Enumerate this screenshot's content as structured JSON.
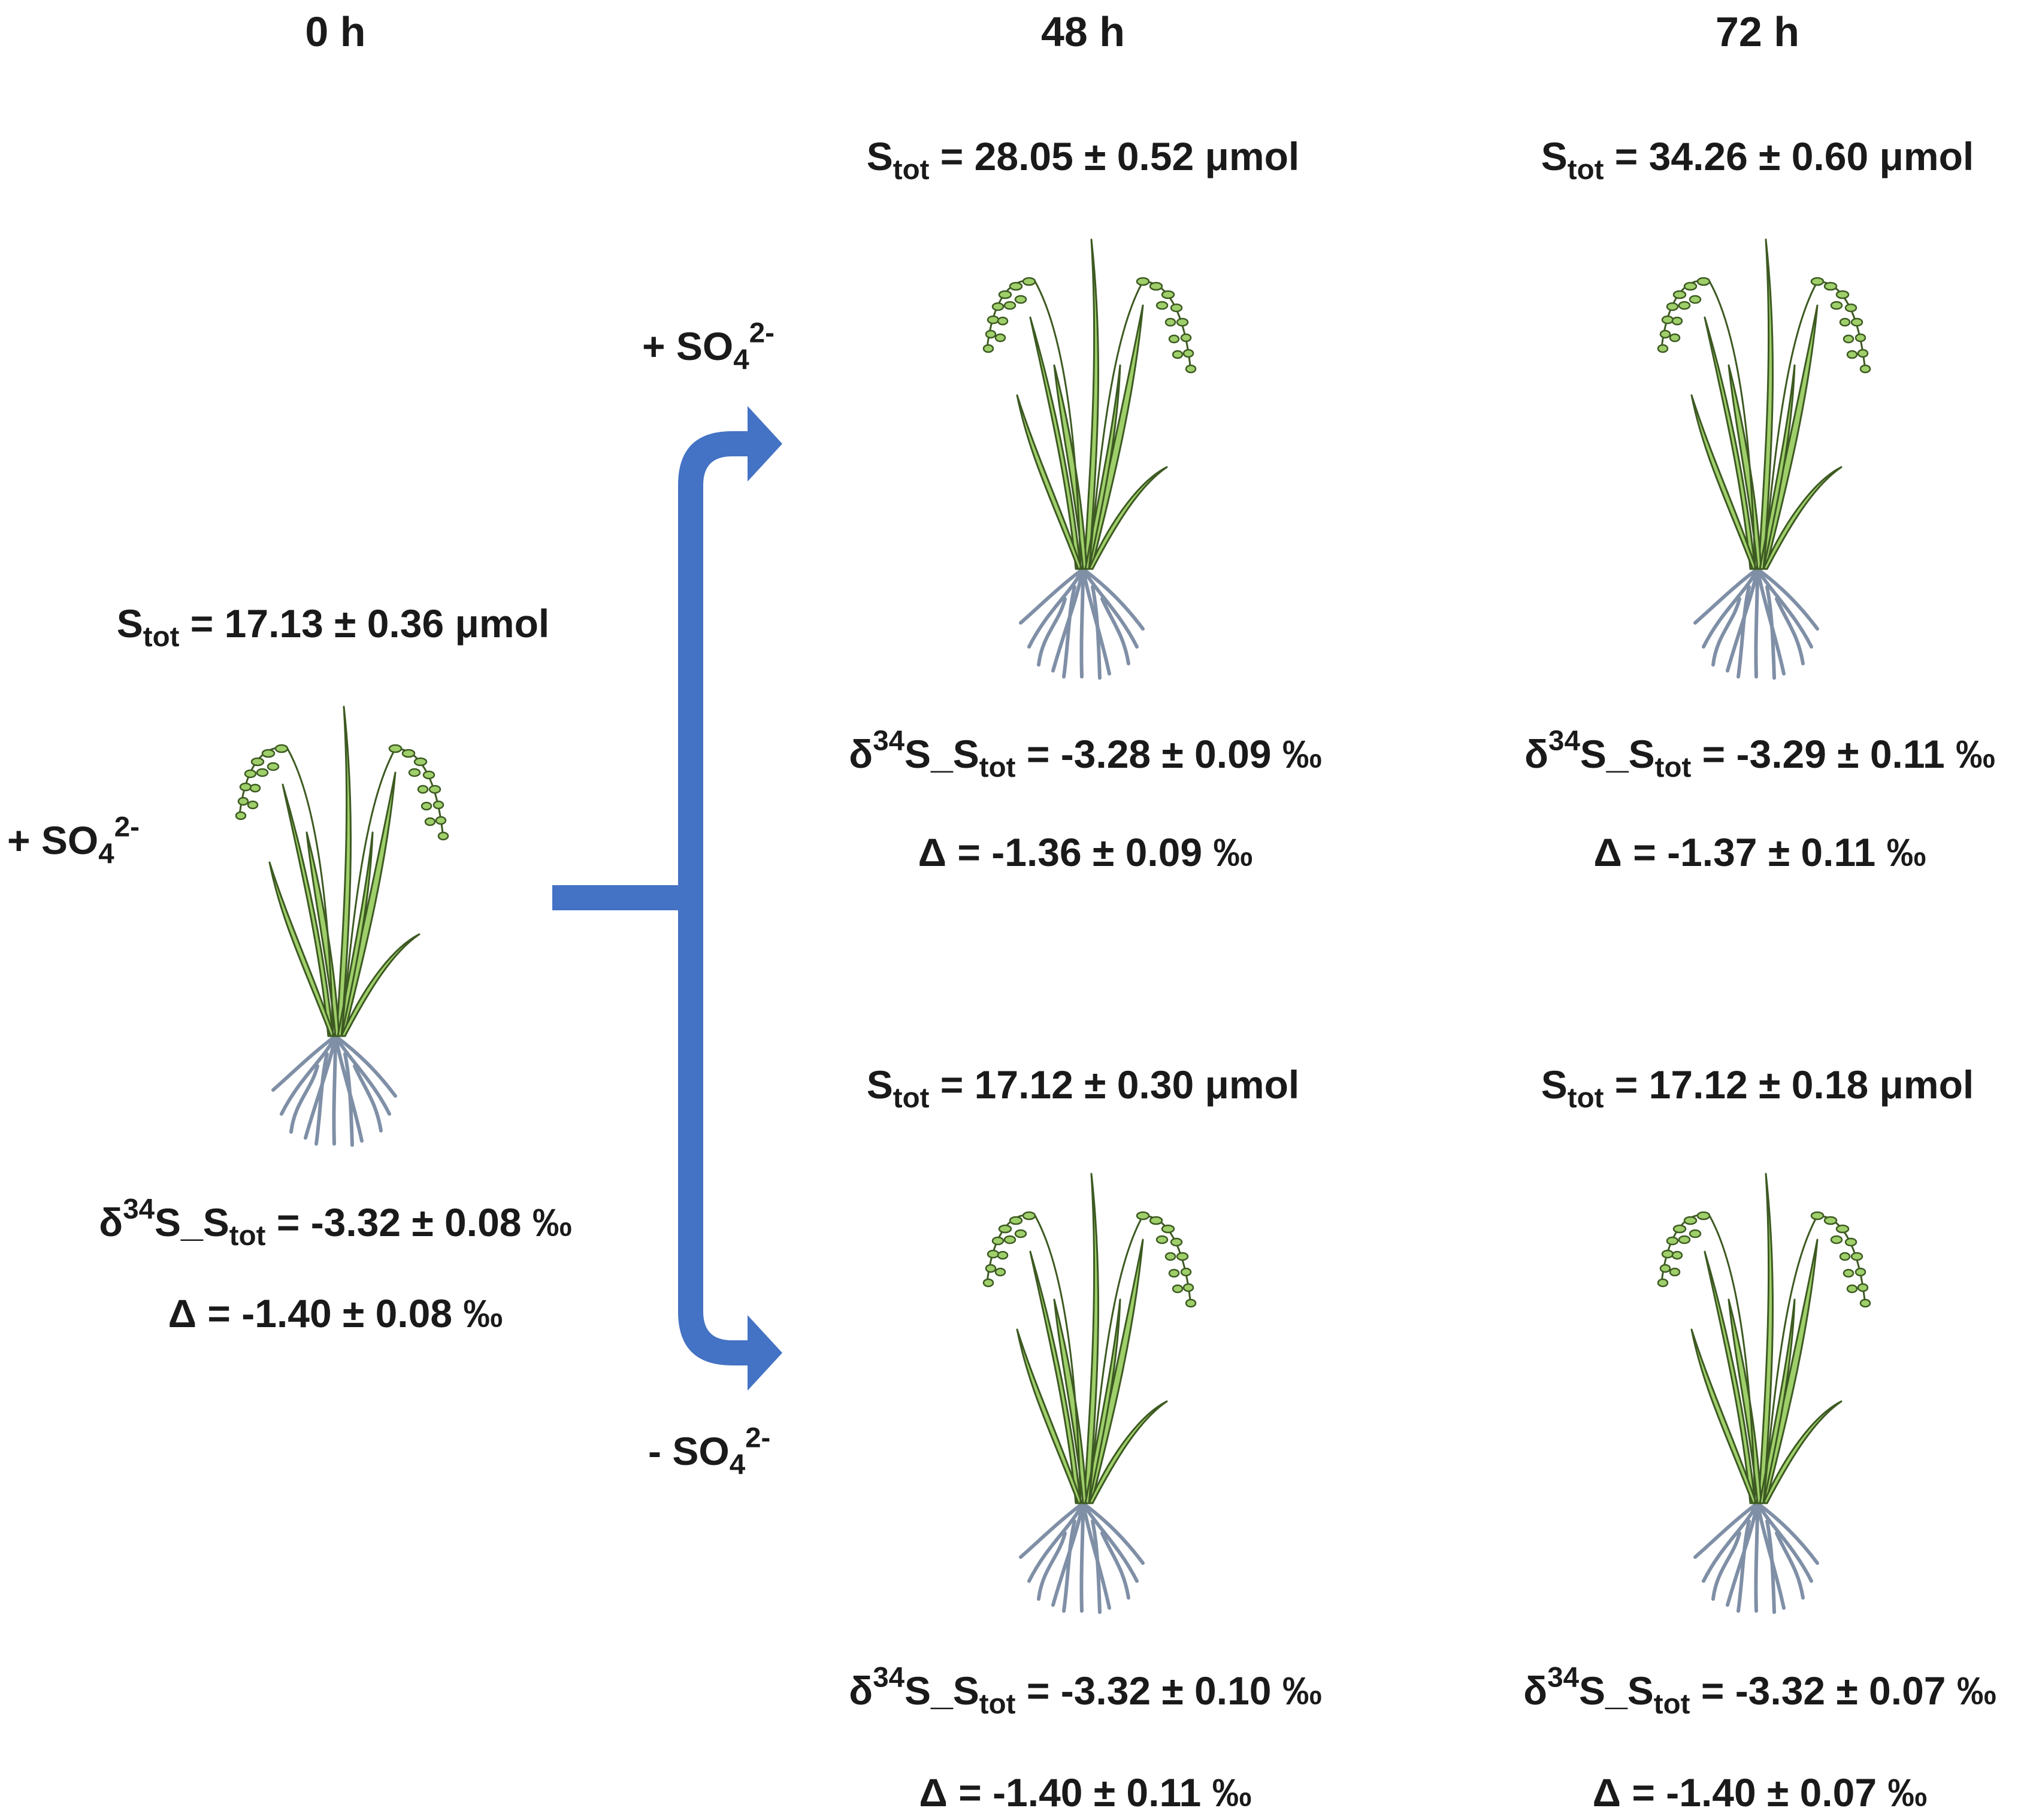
{
  "headers": [
    "0 h",
    "48 h",
    "72 h"
  ],
  "treatment_labels": {
    "left": {
      "prefix": "+ SO",
      "sub": "4",
      "sup": "2-"
    },
    "upper": {
      "prefix": "+ SO",
      "sub": "4",
      "sup": "2-"
    },
    "lower": {
      "prefix": "- SO",
      "sub": "4",
      "sup": "2-"
    }
  },
  "symbols": {
    "s": "S",
    "tot": "tot",
    "delta_small": "δ",
    "iso": "34",
    "underscore": "S_S",
    "delta_cap": "Δ",
    "stot_unit": " μmol",
    "permil": " ‰"
  },
  "panels": {
    "t0": {
      "stot": " = 17.13 ± 0.36",
      "d34s": " = -3.32 ± 0.08",
      "delta": " = -1.40 ± 0.08"
    },
    "plus_48": {
      "stot": " = 28.05 ± 0.52",
      "d34s": " = -3.28 ± 0.09",
      "delta": " = -1.36 ± 0.09"
    },
    "plus_72": {
      "stot": " = 34.26 ± 0.60",
      "d34s": " = -3.29 ± 0.11",
      "delta": " = -1.37 ± 0.11"
    },
    "minus_48": {
      "stot": " = 17.12 ± 0.30",
      "d34s": " = -3.32 ± 0.10",
      "delta": " = -1.40 ± 0.11"
    },
    "minus_72": {
      "stot": " = 17.12 ± 0.18",
      "d34s": " = -3.32 ± 0.07",
      "delta": " = -1.40 ± 0.07"
    }
  },
  "colors": {
    "arrow": "#4472c4",
    "leaf": "#9fcf6a",
    "leaf_outline": "#3d5a22",
    "root": "#7f8fa6"
  },
  "icons": [
    "rice-plant-icon",
    "branching-arrow-icon"
  ]
}
